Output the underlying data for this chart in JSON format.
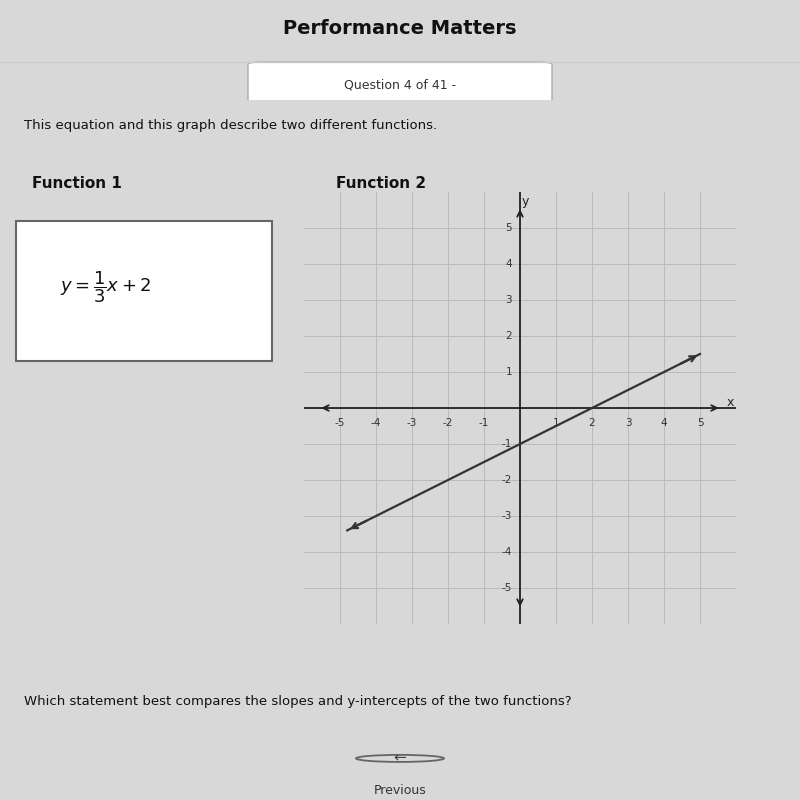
{
  "bg_top": "#ffffff",
  "bg_content": "#d8d8d8",
  "header_text": "Performance Matters",
  "question_text": "Question 4 of 41 -",
  "instruction_text": "This equation and this graph describe two different functions.",
  "func1_label": "Function 1",
  "func2_label": "Function 2",
  "func2_slope": 0.5,
  "func2_intercept": -1,
  "grid_min": -5,
  "grid_max": 5,
  "bottom_text": "Which statement best compares the slopes and y-intercepts of the two functions?",
  "previous_btn": "Previous",
  "axis_color": "#222222",
  "grid_color": "#bbbbbb",
  "line2_color": "#333333",
  "content_bg": "#d4d4d0"
}
